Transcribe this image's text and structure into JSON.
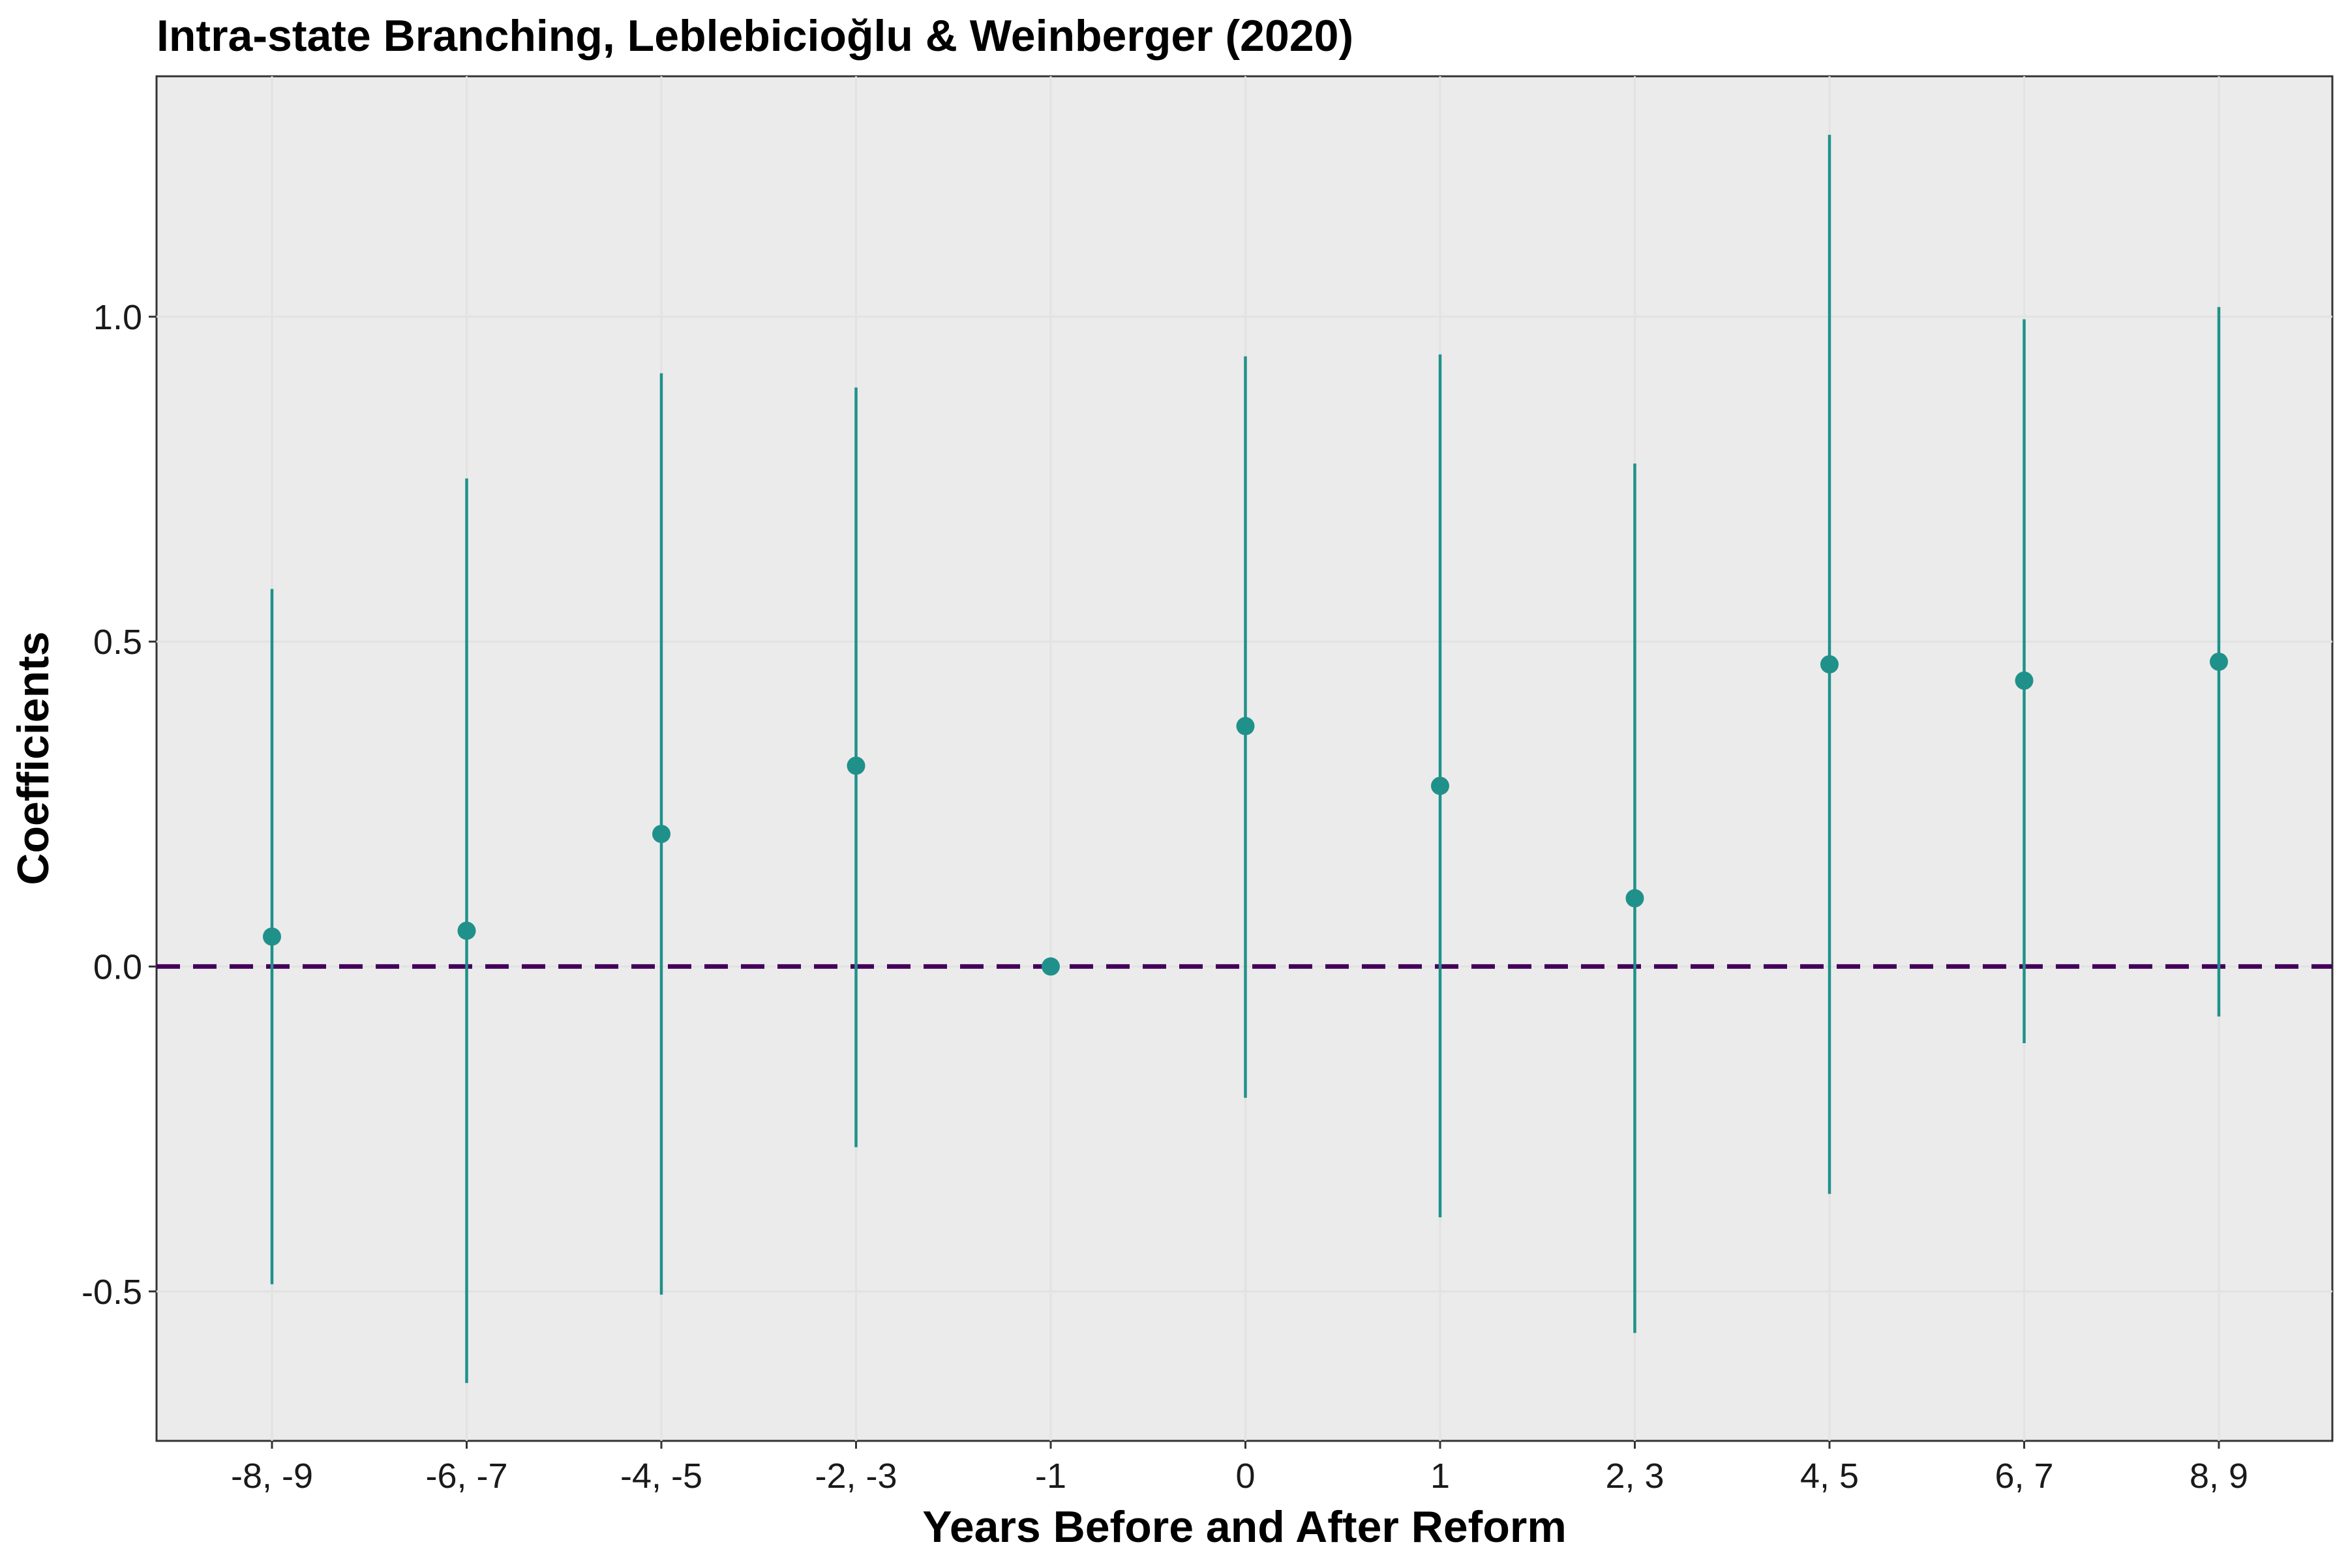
{
  "chart_data": {
    "type": "scatter",
    "title": "Intra-state Branching, Leblebicioğlu & Weinberger (2020)",
    "xlabel": "Years Before and After Reform",
    "ylabel": "Coefficients",
    "categories": [
      "-8, -9",
      "-6, -7",
      "-4, -5",
      "-2, -3",
      "-1",
      "0",
      "1",
      "2, 3",
      "4, 5",
      "6, 7",
      "8, 9"
    ],
    "series": [
      {
        "estimate": [
          0.046,
          0.055,
          0.204,
          0.309,
          0.0,
          0.37,
          0.278,
          0.105,
          0.465,
          0.44,
          0.469
        ],
        "ci_low": [
          -0.489,
          -0.641,
          -0.505,
          -0.278,
          0.0,
          -0.202,
          -0.386,
          -0.564,
          -0.35,
          -0.118,
          -0.077
        ],
        "ci_high": [
          0.581,
          0.751,
          0.913,
          0.891,
          0.0,
          0.939,
          0.942,
          0.774,
          1.28,
          0.996,
          1.015
        ]
      }
    ],
    "reference_line": {
      "y": 0,
      "style": "dashed"
    },
    "yticks": [
      -0.5,
      0.0,
      0.5,
      1.0
    ],
    "ytick_labels": [
      "-0.5",
      "0.0",
      "0.5",
      "1.0"
    ],
    "ylim": [
      -0.73,
      1.37
    ],
    "grid": true,
    "colors": {
      "points": "#20918A",
      "reference_line": "#43005A",
      "panel_background": "#EBEBEB",
      "grid": "#E2E2E2"
    }
  }
}
